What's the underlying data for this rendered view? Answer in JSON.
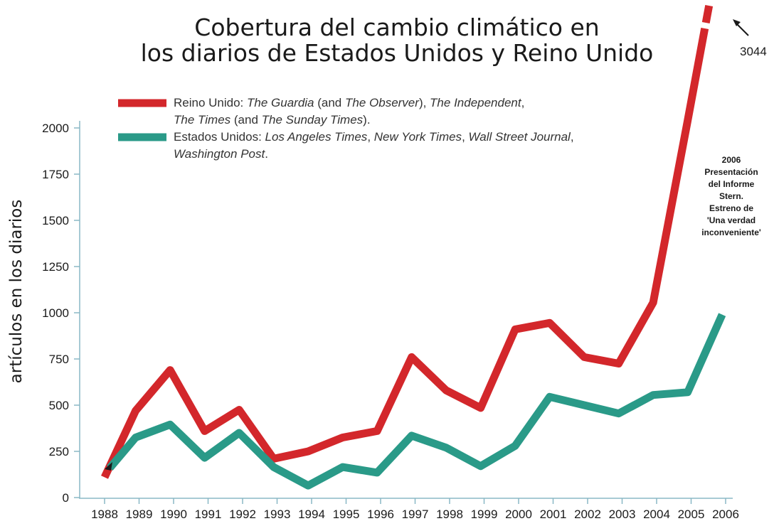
{
  "chart_data": {
    "type": "line",
    "title": [
      "Cobertura del cambio climático en",
      "los diarios de Estados Unidos y Reino Unido"
    ],
    "xlabel": "",
    "ylabel": "artículos en los diarios",
    "ylim": [
      0,
      2000
    ],
    "yticks": [
      0,
      250,
      500,
      750,
      1000,
      1250,
      1500,
      1750,
      2000
    ],
    "categories": [
      "1988",
      "1989",
      "1990",
      "1991",
      "1992",
      "1993",
      "1994",
      "1995",
      "1996",
      "1997",
      "1998",
      "1999",
      "2000",
      "2001",
      "2002",
      "2003",
      "2004",
      "2005",
      "2006"
    ],
    "grid": false,
    "legend_position": "top-left",
    "series": [
      {
        "id": "uk",
        "name_parts": [
          [
            [
              "Reino Unido: ",
              false
            ],
            [
              "The Guardia",
              true
            ],
            [
              " (and ",
              false
            ],
            [
              "The Observer",
              true
            ],
            [
              "), ",
              false
            ],
            [
              "The Independent",
              true
            ],
            [
              ",",
              false
            ]
          ],
          [
            [
              "The Times",
              true
            ],
            [
              " (and ",
              false
            ],
            [
              "The Sunday Times",
              true
            ],
            [
              ").",
              false
            ]
          ]
        ],
        "color": "#d3272b",
        "points": [
          [
            1988.0,
            110
          ],
          [
            1988.15,
            170
          ],
          [
            1988.9,
            470
          ],
          [
            1989.9,
            690
          ],
          [
            1990.9,
            360
          ],
          [
            1991.9,
            475
          ],
          [
            1992.9,
            210
          ],
          [
            1993.9,
            250
          ],
          [
            1994.9,
            325
          ],
          [
            1995.9,
            360
          ],
          [
            1996.9,
            760
          ],
          [
            1997.9,
            580
          ],
          [
            1998.9,
            485
          ],
          [
            1999.9,
            910
          ],
          [
            2000.9,
            945
          ],
          [
            2001.9,
            760
          ],
          [
            2002.9,
            725
          ],
          [
            2003.9,
            1055
          ],
          [
            2004.9,
            2040
          ],
          [
            2005.9,
            3044
          ]
        ],
        "peak_value": 3044,
        "peak_label": "3044"
      },
      {
        "id": "us",
        "name_parts": [
          [
            [
              "Estados Unidos: ",
              false
            ],
            [
              "Los Angeles Times",
              true
            ],
            [
              ", ",
              false
            ],
            [
              "New York Times",
              true
            ],
            [
              ", ",
              false
            ],
            [
              "Wall Street Journal",
              true
            ],
            [
              ",",
              false
            ]
          ],
          [
            [
              "Washington Post",
              true
            ],
            [
              ".",
              false
            ]
          ]
        ],
        "color": "#2a9a88",
        "points": [
          [
            1988.15,
            160
          ],
          [
            1988.9,
            325
          ],
          [
            1989.9,
            395
          ],
          [
            1990.9,
            215
          ],
          [
            1991.9,
            350
          ],
          [
            1992.9,
            165
          ],
          [
            1993.9,
            65
          ],
          [
            1994.9,
            165
          ],
          [
            1995.9,
            135
          ],
          [
            1996.9,
            335
          ],
          [
            1997.9,
            270
          ],
          [
            1998.9,
            170
          ],
          [
            1999.9,
            280
          ],
          [
            2000.9,
            545
          ],
          [
            2001.9,
            500
          ],
          [
            2002.9,
            455
          ],
          [
            2003.9,
            555
          ],
          [
            2004.9,
            570
          ],
          [
            2005.9,
            990
          ]
        ]
      }
    ],
    "annotations": [
      {
        "lines": [
          "2006",
          "Presentación",
          "del Informe",
          "Stern.",
          "Estreno de",
          "'Una verdad",
          "inconveniente'"
        ]
      }
    ]
  }
}
